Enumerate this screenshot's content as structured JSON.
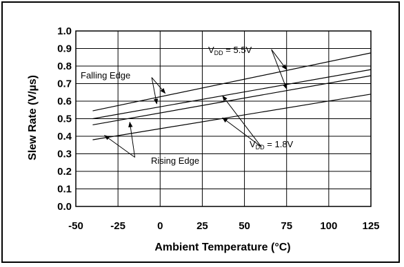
{
  "chart_data": {
    "type": "line",
    "xlabel": "Ambient Temperature (°C)",
    "ylabel": "Slew Rate (V/µs)",
    "xlim": [
      -50,
      125
    ],
    "ylim": [
      0.0,
      1.0
    ],
    "x_ticks": [
      "-50",
      "-25",
      "0",
      "25",
      "50",
      "75",
      "100",
      "125"
    ],
    "y_ticks": [
      "0.0",
      "0.1",
      "0.2",
      "0.3",
      "0.4",
      "0.5",
      "0.6",
      "0.7",
      "0.8",
      "0.9",
      "1.0"
    ],
    "grid": true,
    "series": [
      {
        "x": [
          -40,
          125
        ],
        "values": [
          0.545,
          0.875
        ]
      },
      {
        "x": [
          -40,
          125
        ],
        "values": [
          0.5,
          0.78
        ]
      },
      {
        "x": [
          -40,
          125
        ],
        "values": [
          0.465,
          0.745
        ]
      },
      {
        "x": [
          -40,
          125
        ],
        "values": [
          0.38,
          0.64
        ]
      }
    ],
    "annotations": {
      "falling_edge": "Falling Edge",
      "rising_edge": "Rising Edge",
      "vdd_high_prefix": "V",
      "vdd_high_sub": "DD",
      "vdd_high_value": " = 5.5V",
      "vdd_low_prefix": "V",
      "vdd_low_sub": "DD",
      "vdd_low_value": " = 1.8V"
    }
  }
}
